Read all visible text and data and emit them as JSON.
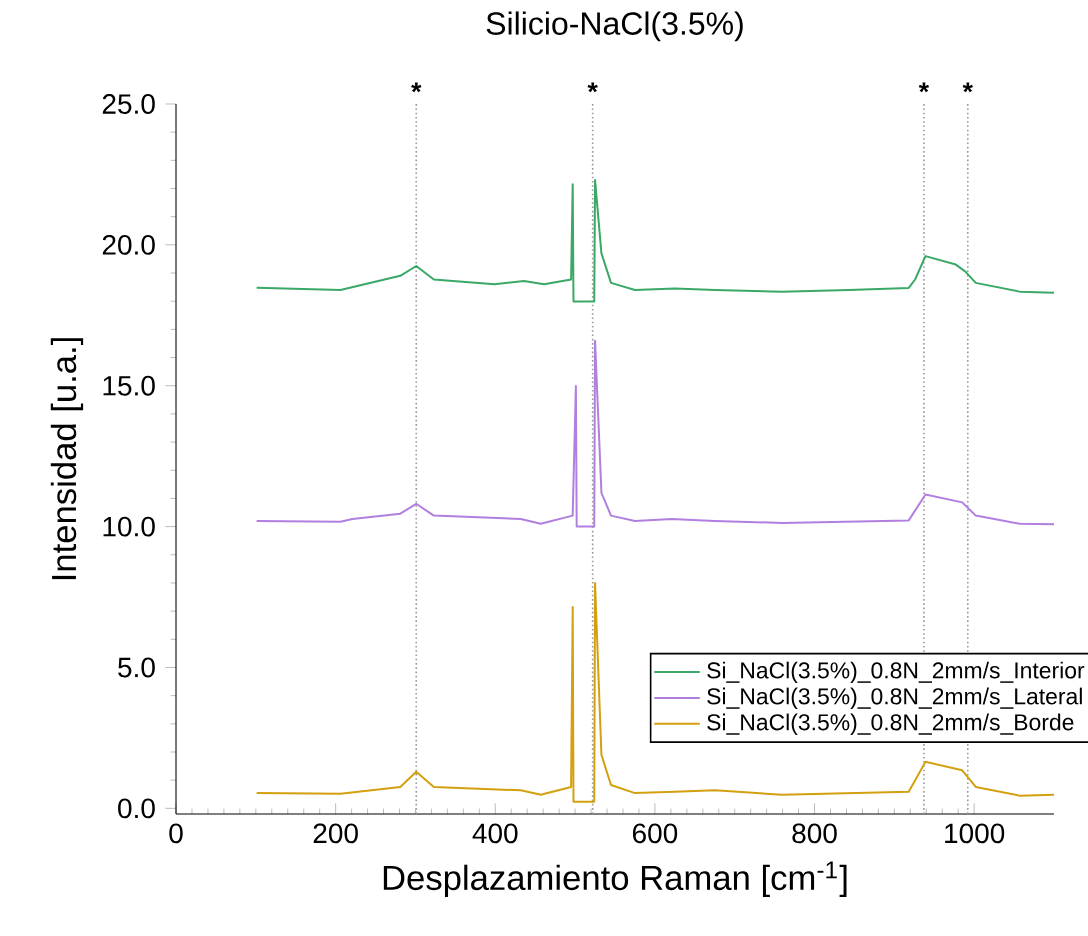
{
  "chart_data": {
    "type": "line",
    "title": "Silicio-NaCl(3.5%)",
    "xlabel": "Desplazamiento Raman [cm$^{-1}$]",
    "ylabel": "Intensidad [u.a.]",
    "xlim": [
      0,
      1100
    ],
    "ylim": [
      -0.2,
      25.0
    ],
    "xticks": [
      0,
      200,
      400,
      600,
      800,
      1000
    ],
    "yticks": [
      {
        "value": 0,
        "label": "0.0"
      },
      {
        "value": 5,
        "label": "5.0"
      },
      {
        "value": 10,
        "label": "10.0"
      },
      {
        "value": 15,
        "label": "15.0"
      },
      {
        "value": 20,
        "label": "20.0"
      },
      {
        "value": 25,
        "label": "25.0"
      }
    ],
    "legend": "bottom right",
    "ref_lines": [
      {
        "axis": "x",
        "value": 301,
        "label": "*",
        "color": "#999999",
        "line_style": "dotted"
      },
      {
        "axis": "x",
        "value": 522,
        "label": "*",
        "color": "#999999",
        "line_style": "dotted"
      },
      {
        "axis": "x",
        "value": 937,
        "label": "*",
        "color": "#999999",
        "line_style": "dotted"
      },
      {
        "axis": "x",
        "value": 992,
        "label": "*",
        "color": "#999999",
        "line_style": "dotted"
      }
    ],
    "series": [
      {
        "name": "Si_NaCl(3.5%)_0.8N_2mm/s_Interior",
        "color": "#3aa867",
        "x": [
          101,
          206,
          281,
          301,
          323,
          399,
          436,
          461,
          495,
          497,
          498,
          524,
          525,
          533,
          545,
          575,
          625,
          675,
          759,
          843,
          918,
          926,
          939,
          977,
          989,
          1002,
          1057,
          1100
        ],
        "values": [
          18.48,
          18.4,
          18.9,
          19.25,
          18.77,
          18.6,
          18.72,
          18.6,
          18.77,
          22.15,
          17.99,
          17.99,
          22.3,
          19.7,
          18.65,
          18.4,
          18.45,
          18.4,
          18.34,
          18.4,
          18.47,
          18.77,
          19.6,
          19.3,
          19.05,
          18.65,
          18.34,
          18.3
        ]
      },
      {
        "name": "Si_NaCl(3.5%)_0.8N_2mm/s_Lateral",
        "color": "#b07fe0",
        "x": [
          101,
          206,
          221,
          281,
          301,
          323,
          432,
          457,
          497,
          501,
          502,
          524,
          525,
          533,
          545,
          575,
          621,
          675,
          759,
          918,
          939,
          985,
          1002,
          1057,
          1100
        ],
        "values": [
          10.2,
          10.17,
          10.27,
          10.46,
          10.81,
          10.39,
          10.27,
          10.1,
          10.39,
          14.99,
          10.0,
          10.0,
          16.6,
          11.2,
          10.39,
          10.2,
          10.27,
          10.2,
          10.13,
          10.22,
          11.14,
          10.86,
          10.39,
          10.1,
          10.08
        ]
      },
      {
        "name": "Si_NaCl(3.5%)_0.8N_2mm/s_Borde",
        "color": "#d4a010",
        "x": [
          101,
          206,
          281,
          301,
          323,
          432,
          457,
          495,
          497,
          498,
          524,
          525,
          533,
          545,
          575,
          625,
          675,
          759,
          918,
          939,
          985,
          1002,
          1057,
          1100
        ],
        "values": [
          0.54,
          0.52,
          0.76,
          1.3,
          0.76,
          0.64,
          0.48,
          0.76,
          7.15,
          0.23,
          0.23,
          8.0,
          1.9,
          0.83,
          0.54,
          0.59,
          0.64,
          0.48,
          0.59,
          1.65,
          1.35,
          0.76,
          0.45,
          0.48
        ]
      }
    ]
  }
}
